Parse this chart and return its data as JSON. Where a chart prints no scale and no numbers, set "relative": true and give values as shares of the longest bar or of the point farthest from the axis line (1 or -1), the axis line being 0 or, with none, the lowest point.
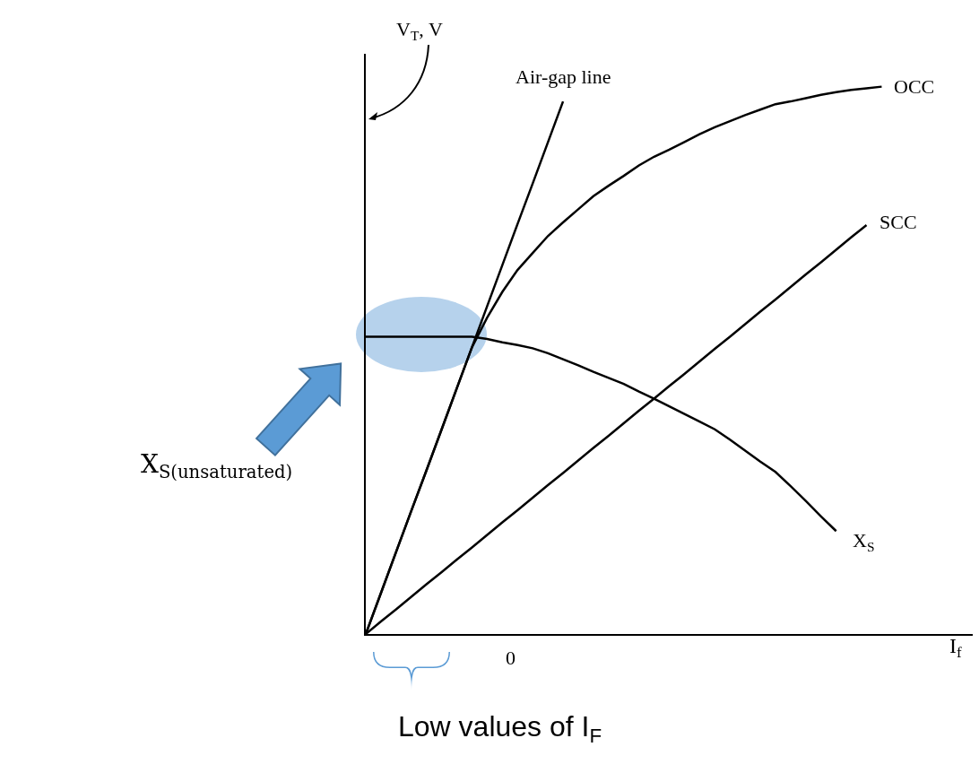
{
  "chart_data": {
    "type": "line",
    "relative": true,
    "ylabel": "V$_{T}$, V",
    "xlabel": "I$_{f}$",
    "grid": false,
    "legend": false,
    "marker": "none",
    "line_style": "solid",
    "categories": [
      null,
      null,
      null,
      null,
      null,
      null,
      null,
      null,
      null,
      null,
      null,
      null,
      null,
      null,
      null,
      null,
      null,
      null,
      null,
      null,
      null,
      null,
      null,
      null,
      null,
      null,
      null,
      null,
      null,
      null,
      null,
      null,
      null,
      null,
      null,
      null,
      null,
      null,
      null,
      null,
      null
    ],
    "series": [
      {
        "name": "Air-gap line",
        "color": "#000000",
        "values": [
          0,
          0.075,
          0.15,
          0.225,
          0.299,
          0.374,
          0.449,
          0.524,
          0.599,
          0.674,
          0.749,
          0.823,
          0.898,
          0.973,
          null,
          null,
          null,
          null,
          null,
          null,
          null,
          null,
          null,
          null,
          null,
          null,
          null,
          null,
          null,
          null,
          null,
          null,
          null,
          null,
          null,
          null,
          null,
          null,
          null,
          null,
          null
        ]
      },
      {
        "name": "OCC",
        "color": "#000000",
        "values": [
          0,
          0.075,
          0.15,
          0.225,
          0.299,
          0.374,
          0.449,
          0.524,
          0.578,
          0.625,
          0.665,
          0.696,
          0.727,
          0.752,
          0.776,
          0.8,
          0.819,
          0.837,
          0.856,
          0.872,
          0.885,
          0.899,
          0.913,
          0.926,
          0.937,
          0.948,
          0.958,
          0.968,
          0.973,
          0.979,
          0.985,
          0.99,
          0.994,
          0.997,
          1,
          null,
          null,
          null,
          null,
          null,
          null
        ]
      },
      {
        "name": "SCC",
        "color": "#000000",
        "values": [
          0,
          0.023,
          0.045,
          0.068,
          0.091,
          0.113,
          0.136,
          0.158,
          0.181,
          0.204,
          0.226,
          0.249,
          0.272,
          0.294,
          0.317,
          0.34,
          0.362,
          0.385,
          0.408,
          0.43,
          0.453,
          0.475,
          0.498,
          0.521,
          0.543,
          0.566,
          0.589,
          0.611,
          0.634,
          0.657,
          0.679,
          0.702,
          0.725,
          0.747,
          null,
          null,
          null,
          null,
          null,
          null,
          null
        ]
      },
      {
        "name": "X$_{S}$",
        "color": "#000000",
        "values": [
          0.543,
          0.543,
          0.543,
          0.543,
          0.543,
          0.543,
          0.543,
          0.543,
          0.539,
          0.533,
          0.528,
          0.522,
          0.513,
          0.502,
          0.491,
          0.479,
          0.468,
          0.457,
          0.443,
          0.43,
          0.416,
          0.402,
          0.388,
          0.374,
          0.355,
          0.335,
          0.315,
          0.296,
          0.27,
          0.243,
          0.215,
          0.188,
          null,
          null,
          null,
          null,
          null,
          null,
          null,
          null,
          null
        ]
      }
    ],
    "annotations": [
      "0",
      "X$_{S(unsaturated)}$",
      "Low values of I$_{F}$"
    ]
  }
}
